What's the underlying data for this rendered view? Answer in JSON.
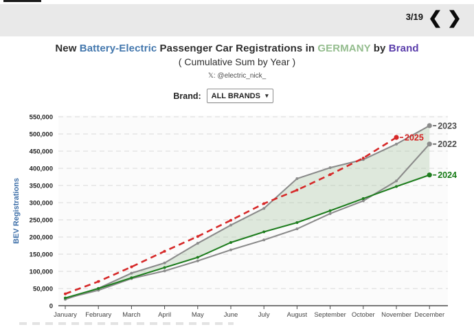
{
  "header": {
    "page_indicator": "3/19",
    "prev_icon": "❮",
    "next_icon": "❯"
  },
  "title": {
    "parts": [
      {
        "text": "New ",
        "color": "#2e2e2e"
      },
      {
        "text": "Battery-Electric",
        "color": "#4377ad"
      },
      {
        "text": " Passenger Car Registrations in ",
        "color": "#2e2e2e"
      },
      {
        "text": "GERMANY",
        "color": "#94bd8e"
      },
      {
        "text": " by ",
        "color": "#2e2e2e"
      },
      {
        "text": "Brand",
        "color": "#5a3daa"
      }
    ],
    "subtitle": "( Cumulative Sum by Year )",
    "handle": "𝕏: @electric_nick_"
  },
  "controls": {
    "brand_label": "Brand:",
    "brand_value": "ALL BRANDS",
    "dropdown_icon": "▾"
  },
  "chart_data": {
    "type": "line",
    "title": "New Battery-Electric Passenger Car Registrations in GERMANY by Brand ( Cumulative Sum by Year )",
    "xlabel": "",
    "ylabel": "BEV Registrations",
    "categories": [
      "January",
      "February",
      "March",
      "April",
      "May",
      "June",
      "July",
      "August",
      "September",
      "October",
      "November",
      "December"
    ],
    "ylim": [
      0,
      550000
    ],
    "ytick_step": 50000,
    "grid": true,
    "series": [
      {
        "name": "2023",
        "color": "#8b8b8b",
        "dash": "solid",
        "values": [
          18500,
          50600,
          94700,
          124500,
          181700,
          234700,
          283300,
          370000,
          401700,
          425600,
          470500,
          524200
        ]
      },
      {
        "name": "2022",
        "color": "#8b8b8b",
        "dash": "solid",
        "values": [
          20800,
          44900,
          79000,
          101200,
          130400,
          162600,
          191400,
          223700,
          268100,
          305200,
          363200,
          470600
        ]
      },
      {
        "name": "2024",
        "color": "#1e7d1e",
        "dash": "solid",
        "values": [
          22500,
          50000,
          81300,
          111000,
          140700,
          184100,
          214900,
          241900,
          276400,
          311900,
          347000,
          380600
        ]
      },
      {
        "name": "2025",
        "color": "#d62828",
        "dash": "dashed",
        "values": [
          34500,
          70400,
          113000,
          158500,
          201600,
          248700,
          297300,
          336700,
          381700,
          429800,
          490000
        ]
      }
    ],
    "fill_between": [
      "2023",
      "2024"
    ],
    "fill_color": "#a9c6a3",
    "end_labels": [
      {
        "series": "2023",
        "color": "#4d4d4d"
      },
      {
        "series": "2022",
        "color": "#4d4d4d"
      },
      {
        "series": "2024",
        "color": "#157a15"
      },
      {
        "series": "2025",
        "color": "#d42222"
      }
    ],
    "legend_position": "line-end-labels"
  }
}
